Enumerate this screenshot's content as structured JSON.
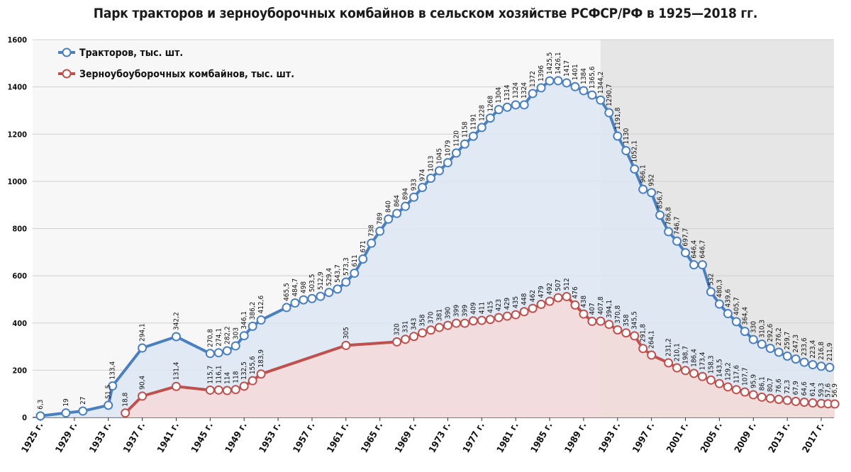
{
  "chart_data": {
    "type": "line",
    "title": "Парк тракторов и зерноуборочных комбайнов в сельском хозяйстве РСФСР/РФ в 1925—2018 гг.",
    "ylim": [
      0,
      1600
    ],
    "yticks": [
      0,
      200,
      400,
      600,
      800,
      1000,
      1200,
      1400,
      1600
    ],
    "xlim": [
      1925,
      2018
    ],
    "xticks": [
      1925,
      1929,
      1933,
      1937,
      1941,
      1945,
      1949,
      1953,
      1957,
      1961,
      1965,
      1969,
      1973,
      1977,
      1981,
      1985,
      1989,
      1993,
      1997,
      2001,
      2005,
      2009,
      2013,
      2017
    ],
    "xtick_labels": [
      "1925 г.",
      "1929 г.",
      "1933 г.",
      "1937 г.",
      "1941 г.",
      "1945 г.",
      "1949 г.",
      "1953 г.",
      "1957 г.",
      "1961 г.",
      "1965 г.",
      "1969 г.",
      "1973 г.",
      "1977 г.",
      "1981 г.",
      "1985 г.",
      "1989 г.",
      "1993 г.",
      "1997 г.",
      "2001 г.",
      "2005 г.",
      "2009 г.",
      "2013 г.",
      "2017 г."
    ],
    "shaded_region_from_year": 1991,
    "grid": "horizontal",
    "legend_position": "top-left",
    "series": [
      {
        "name": "Тракторов, тыс. шт.",
        "color": "#4a7fc0",
        "fill": "#dce6f3",
        "points": [
          [
            1925,
            6.3,
            "6,3"
          ],
          [
            1928,
            19,
            "19"
          ],
          [
            1930,
            27,
            "27"
          ],
          [
            1933,
            51.5,
            "51,5"
          ],
          [
            1933.5,
            133.4,
            "133,4"
          ],
          [
            1937,
            294.1,
            "294,1"
          ],
          [
            1941,
            342.2,
            "342,2"
          ],
          [
            1945,
            270.8,
            "270,8"
          ],
          [
            1946,
            274.1,
            "274,1"
          ],
          [
            1947,
            282.2,
            "282,2"
          ],
          [
            1948,
            303,
            "303"
          ],
          [
            1949,
            346.1,
            "346,1"
          ],
          [
            1950,
            386.2,
            "386,2"
          ],
          [
            1951,
            412.6,
            "412,6"
          ],
          [
            1954,
            465.5,
            "465,5"
          ],
          [
            1955,
            484.7,
            "484,7"
          ],
          [
            1956,
            498,
            "498"
          ],
          [
            1957,
            503.5,
            "503,5"
          ],
          [
            1958,
            512.9,
            "512,9"
          ],
          [
            1959,
            529.4,
            "529,4"
          ],
          [
            1960,
            543.7,
            "543,7"
          ],
          [
            1961,
            573.3,
            "573,3"
          ],
          [
            1962,
            611,
            "611"
          ],
          [
            1963,
            671,
            "671"
          ],
          [
            1964,
            738,
            "738"
          ],
          [
            1965,
            789,
            "789"
          ],
          [
            1966,
            840,
            "840"
          ],
          [
            1967,
            864,
            "864"
          ],
          [
            1968,
            894,
            "894"
          ],
          [
            1969,
            933,
            "933"
          ],
          [
            1970,
            974,
            "974"
          ],
          [
            1971,
            1013,
            "1013"
          ],
          [
            1972,
            1045,
            "1045"
          ],
          [
            1973,
            1079,
            "1079"
          ],
          [
            1974,
            1120,
            "1120"
          ],
          [
            1975,
            1158,
            "1158"
          ],
          [
            1976,
            1191,
            "1191"
          ],
          [
            1977,
            1228,
            "1228"
          ],
          [
            1978,
            1268,
            "1268"
          ],
          [
            1979,
            1304,
            "1304"
          ],
          [
            1980,
            1314,
            "1314"
          ],
          [
            1981,
            1324,
            "1324"
          ],
          [
            1982,
            1324,
            "1324"
          ],
          [
            1983,
            1372,
            "1372"
          ],
          [
            1984,
            1396,
            "1396"
          ],
          [
            1985,
            1425.5,
            "1425,5"
          ],
          [
            1986,
            1426.1,
            "1426,1"
          ],
          [
            1987,
            1417,
            "1417"
          ],
          [
            1988,
            1401,
            "1401"
          ],
          [
            1989,
            1384,
            "1384"
          ],
          [
            1990,
            1365.6,
            "1365,6"
          ],
          [
            1991,
            1344.2,
            "1344,2"
          ],
          [
            1992,
            1290.7,
            "1290,7"
          ],
          [
            1993,
            1191.8,
            "1191,8"
          ],
          [
            1994,
            1130,
            "1130"
          ],
          [
            1995,
            1052.1,
            "1052,1"
          ],
          [
            1996,
            966.1,
            "966,1"
          ],
          [
            1997,
            952,
            "952"
          ],
          [
            1998,
            856.7,
            "856,7"
          ],
          [
            1999,
            786.8,
            "786,8"
          ],
          [
            2000,
            746.7,
            "746,7"
          ],
          [
            2001,
            697.7,
            "697,7"
          ],
          [
            2002,
            646.4,
            "646,4"
          ],
          [
            2003,
            646.7,
            "646,7"
          ],
          [
            2004,
            532,
            "532"
          ],
          [
            2005,
            480.3,
            "480,3"
          ],
          [
            2006,
            439.6,
            "439,6"
          ],
          [
            2007,
            405.7,
            "405,7"
          ],
          [
            2008,
            364.4,
            "364,4"
          ],
          [
            2009,
            330,
            "330"
          ],
          [
            2010,
            310.3,
            "310,3"
          ],
          [
            2011,
            292.6,
            "292,6"
          ],
          [
            2012,
            276.2,
            "276,2"
          ],
          [
            2013,
            259.7,
            "259,7"
          ],
          [
            2014,
            247.3,
            "247,3"
          ],
          [
            2015,
            233.6,
            "233,6"
          ],
          [
            2016,
            223.4,
            "223,4"
          ],
          [
            2017,
            216.8,
            "216,8"
          ],
          [
            2018,
            211.9,
            "211,9"
          ]
        ]
      },
      {
        "name": "Зерноубоуборочных комбайнов, тыс. шт.",
        "color": "#c0504d",
        "fill": "#f4d9d8",
        "points": [
          [
            1935,
            18.8,
            "18,8"
          ],
          [
            1937,
            90.4,
            "90,4"
          ],
          [
            1941,
            131.4,
            "131,4"
          ],
          [
            1945,
            115.7,
            "115,7"
          ],
          [
            1946,
            116.1,
            "116,1"
          ],
          [
            1947,
            114,
            "114"
          ],
          [
            1948,
            118,
            "118"
          ],
          [
            1949,
            132.5,
            "132,5"
          ],
          [
            1950,
            155.6,
            "155,6"
          ],
          [
            1951,
            183.9,
            "183,9"
          ],
          [
            1961,
            305,
            "305"
          ],
          [
            1967,
            320,
            "320"
          ],
          [
            1968,
            331,
            "331"
          ],
          [
            1969,
            343,
            "343"
          ],
          [
            1970,
            358,
            "358"
          ],
          [
            1971,
            370,
            "370"
          ],
          [
            1972,
            381,
            "381"
          ],
          [
            1973,
            390,
            "390"
          ],
          [
            1974,
            399,
            "399"
          ],
          [
            1975,
            399,
            "399"
          ],
          [
            1976,
            409,
            "409"
          ],
          [
            1977,
            411,
            "411"
          ],
          [
            1978,
            415,
            "415"
          ],
          [
            1979,
            423,
            "423"
          ],
          [
            1980,
            429,
            "429"
          ],
          [
            1981,
            435,
            "435"
          ],
          [
            1982,
            448,
            "448"
          ],
          [
            1983,
            462,
            "462"
          ],
          [
            1984,
            479,
            "479"
          ],
          [
            1985,
            492,
            "492"
          ],
          [
            1986,
            507,
            "507"
          ],
          [
            1987,
            512,
            "512"
          ],
          [
            1988,
            476,
            "476"
          ],
          [
            1989,
            438,
            "438"
          ],
          [
            1990,
            407,
            "407"
          ],
          [
            1991,
            407.8,
            "407,8"
          ],
          [
            1992,
            394.1,
            "394,1"
          ],
          [
            1993,
            370.8,
            "370,8"
          ],
          [
            1994,
            358,
            "358"
          ],
          [
            1995,
            345.5,
            "345,5"
          ],
          [
            1996,
            291.8,
            "291,8"
          ],
          [
            1997,
            264.1,
            "264,1"
          ],
          [
            1999,
            231.2,
            "231,2"
          ],
          [
            2000,
            210.1,
            "210,1"
          ],
          [
            2001,
            198.7,
            "198,7"
          ],
          [
            2002,
            186.4,
            "186,4"
          ],
          [
            2003,
            173.4,
            "173,4"
          ],
          [
            2004,
            158.3,
            "158,3"
          ],
          [
            2005,
            143.5,
            "143,5"
          ],
          [
            2006,
            129.2,
            "129,2"
          ],
          [
            2007,
            117.6,
            "117,6"
          ],
          [
            2008,
            107.7,
            "107,7"
          ],
          [
            2009,
            95.9,
            "95,9"
          ],
          [
            2010,
            86.1,
            "86,1"
          ],
          [
            2011,
            80.7,
            "80,7"
          ],
          [
            2012,
            76.6,
            "76,6"
          ],
          [
            2013,
            72.3,
            "72,3"
          ],
          [
            2014,
            67.9,
            "67,9"
          ],
          [
            2015,
            64.6,
            "64,6"
          ],
          [
            2016,
            61.4,
            "61,4"
          ],
          [
            2017,
            59.3,
            "59,3"
          ],
          [
            2017.8,
            57.6,
            "57,6"
          ],
          [
            2018.6,
            56.9,
            "56,9"
          ]
        ]
      }
    ]
  }
}
